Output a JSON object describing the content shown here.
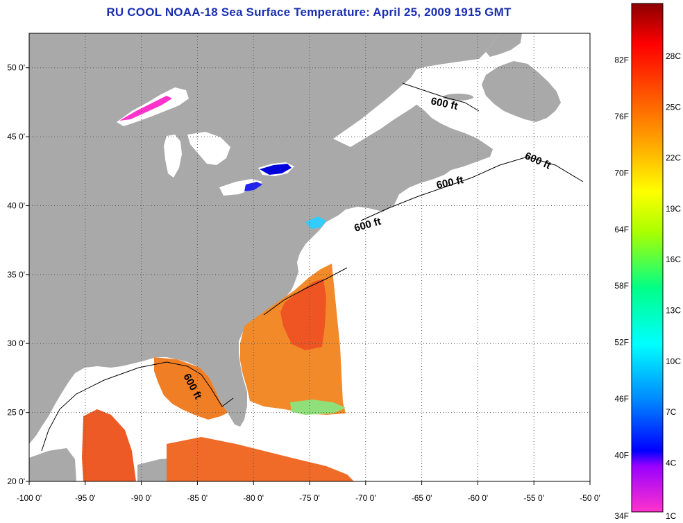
{
  "title": "RU COOL  NOAA-18  Sea Surface Temperature:  April 25, 2009 1915 GMT",
  "map": {
    "lon_range": [
      -100,
      -50
    ],
    "lat_range": [
      20,
      52.5
    ],
    "lon_ticks": [
      "-100 0'",
      "-95 0'",
      "-90 0'",
      "-85 0'",
      "-80 0'",
      "-75 0'",
      "-70 0'",
      "-65 0'",
      "-60 0'",
      "-55 0'",
      "-50 0'"
    ],
    "lat_ticks": [
      "20 0'",
      "25 0'",
      "30 0'",
      "35 0'",
      "40 0'",
      "45 0'",
      "50 0'"
    ],
    "grid": "dotted",
    "land_color": "#a9a9a9",
    "no_data_color": "#ffffff",
    "isobath_labels": [
      "600 ft",
      "600 ft",
      "600 ft",
      "600 ft",
      "600 ft"
    ]
  },
  "colorbar": {
    "f_labels": [
      "82F",
      "76F",
      "70F",
      "64F",
      "58F",
      "52F",
      "46F",
      "40F",
      "34F"
    ],
    "c_labels": [
      "28C",
      "25C",
      "22C",
      "19C",
      "16C",
      "13C",
      "10C",
      "7C",
      "4C",
      "1C"
    ],
    "colors": [
      "#ff33cc",
      "#9900ff",
      "#0000ff",
      "#00aaff",
      "#00ffff",
      "#00ff66",
      "#ccff00",
      "#ffff00",
      "#ffaa00",
      "#ff5500",
      "#ff0000",
      "#8b0000"
    ]
  }
}
